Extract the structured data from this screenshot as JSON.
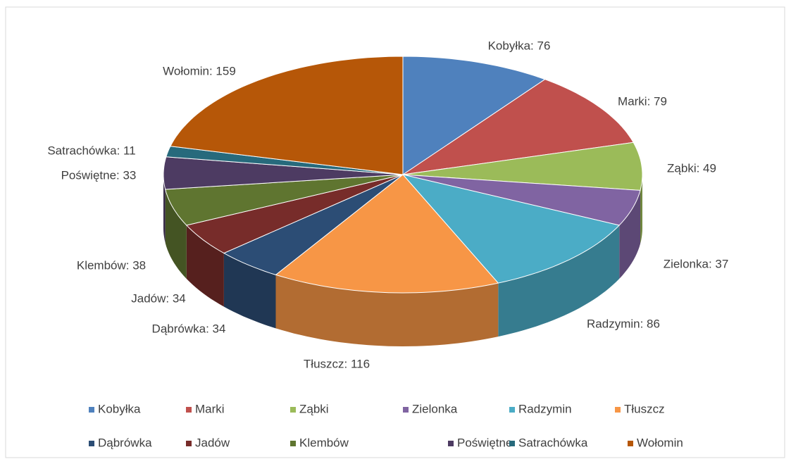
{
  "chart_data": {
    "type": "pie3d",
    "categories": [
      "Kobyłka",
      "Marki",
      "Ząbki",
      "Zielonka",
      "Radzymin",
      "Tłuszcz",
      "Dąbrówka",
      "Jadów",
      "Klembów",
      "Poświętne",
      "Satrachówka",
      "Wołomin"
    ],
    "values": [
      76,
      79,
      49,
      37,
      86,
      116,
      34,
      34,
      38,
      33,
      11,
      159
    ],
    "value_labels": [
      "Kobyłka: 76",
      "Marki: 79",
      "Ząbki: 49",
      "Zielonka: 37",
      "Radzymin: 86",
      "Tłuszcz: 116",
      "Dąbrówka: 34",
      "Jadów: 34",
      "Klembów: 38",
      "Poświętne: 33",
      "Satrachówka: 11",
      "Wołomin: 159"
    ],
    "colors": [
      "#4f81bd",
      "#c0504d",
      "#9bbb59",
      "#8064a2",
      "#4bacc6",
      "#f79646",
      "#2c4d75",
      "#772c2a",
      "#5f7530",
      "#4d3b62",
      "#276a7c",
      "#b65708"
    ],
    "legend": "bottom"
  }
}
